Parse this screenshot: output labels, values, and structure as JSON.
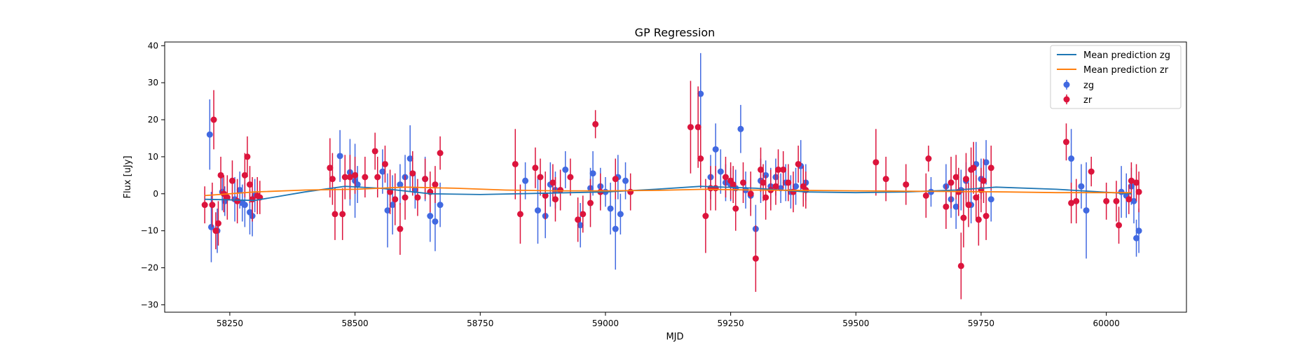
{
  "chart_data": {
    "type": "scatter",
    "title": "GP Regression",
    "xlabel": "MJD",
    "ylabel": "Flux [uJy]",
    "xlim": [
      58120,
      60160
    ],
    "ylim": [
      -32,
      41
    ],
    "xticks": [
      58250,
      58500,
      58750,
      59000,
      59250,
      59500,
      59750,
      60000
    ],
    "yticks": [
      -30,
      -20,
      -10,
      0,
      10,
      20,
      30,
      40
    ],
    "legend_position": "top-right",
    "lines": [
      {
        "name": "Mean prediction zg",
        "color": "#1f77b4",
        "x": [
          58200,
          58300,
          58400,
          58480,
          58550,
          58650,
          58750,
          58900,
          59000,
          59100,
          59190,
          59300,
          59400,
          59500,
          59600,
          59700,
          59780,
          59900,
          60050
        ],
        "y": [
          -1.5,
          -1.8,
          0.5,
          2.0,
          1.5,
          0.0,
          -0.2,
          0.2,
          0.5,
          1.2,
          2.0,
          1.5,
          0.5,
          0.3,
          0.5,
          1.0,
          1.8,
          1.2,
          0.0
        ]
      },
      {
        "name": "Mean prediction zr",
        "color": "#ff7f0e",
        "x": [
          58200,
          58300,
          58400,
          58500,
          58600,
          58700,
          58800,
          58900,
          59000,
          59100,
          59200,
          59300,
          59400,
          59500,
          59600,
          59700,
          59800,
          59900,
          60050
        ],
        "y": [
          -0.5,
          0.5,
          1.0,
          1.2,
          1.8,
          1.5,
          1.0,
          0.8,
          0.8,
          0.9,
          1.2,
          1.0,
          0.9,
          0.8,
          0.7,
          0.6,
          0.5,
          0.3,
          0.3
        ]
      }
    ],
    "series": [
      {
        "name": "zg",
        "color": "#4169e1",
        "x": [
          58210,
          58213,
          58225,
          58235,
          58240,
          58260,
          58270,
          58275,
          58280,
          58290,
          58295,
          58300,
          58470,
          58490,
          58500,
          58505,
          58555,
          58565,
          58575,
          58590,
          58600,
          58610,
          58620,
          58640,
          58650,
          58660,
          58670,
          58840,
          58865,
          58880,
          58890,
          58900,
          58920,
          58950,
          58970,
          58975,
          58990,
          59000,
          59010,
          59020,
          59025,
          59030,
          59040,
          59190,
          59210,
          59220,
          59230,
          59240,
          59250,
          59260,
          59270,
          59280,
          59290,
          59300,
          59310,
          59320,
          59330,
          59340,
          59350,
          59360,
          59370,
          59380,
          59390,
          59400,
          59650,
          59680,
          59690,
          59700,
          59710,
          59720,
          59730,
          59740,
          59750,
          59760,
          59770,
          59930,
          59950,
          59960,
          60030,
          60040,
          60050,
          60055,
          60060,
          60065
        ],
        "y": [
          16.0,
          -9.0,
          -10.0,
          0.5,
          -2.0,
          -1.5,
          1.0,
          -2.5,
          -3.0,
          -5.0,
          -6.0,
          -0.5,
          10.2,
          5.8,
          3.5,
          2.5,
          6.0,
          -4.5,
          -3.0,
          2.5,
          4.5,
          9.5,
          1.0,
          4.0,
          -6.0,
          -7.5,
          -3.0,
          3.5,
          -4.5,
          -6.0,
          2.5,
          1.0,
          6.5,
          -8.5,
          1.5,
          5.5,
          2.0,
          0.5,
          -4.0,
          -9.5,
          4.5,
          -5.5,
          3.5,
          27.0,
          4.5,
          12.0,
          6.0,
          3.0,
          2.5,
          1.5,
          17.5,
          1.0,
          -0.5,
          -9.5,
          3.5,
          5.0,
          2.0,
          4.5,
          1.5,
          3.0,
          0.5,
          2.0,
          7.5,
          3.0,
          0.5,
          2.0,
          -1.5,
          -3.5,
          1.0,
          3.5,
          -3.0,
          8.0,
          4.0,
          8.5,
          -1.5,
          9.5,
          2.0,
          -4.5,
          0.5,
          -0.5,
          2.0,
          -2.0,
          -12.0,
          -10.0
        ],
        "err": [
          9.5,
          9.5,
          6.0,
          5.0,
          4.0,
          6.0,
          5.0,
          5.0,
          6.0,
          6.0,
          5.5,
          4.5,
          7.0,
          9.0,
          10.0,
          5.0,
          6.0,
          10.0,
          8.0,
          5.5,
          6.0,
          9.0,
          5.0,
          6.0,
          7.0,
          8.0,
          6.0,
          5.0,
          9.0,
          6.0,
          6.0,
          5.0,
          5.0,
          6.0,
          5.5,
          6.0,
          5.0,
          4.0,
          7.0,
          11.0,
          6.0,
          5.5,
          5.0,
          11.0,
          6.0,
          7.0,
          6.0,
          5.0,
          4.5,
          5.0,
          6.5,
          5.0,
          4.5,
          6.5,
          6.0,
          4.0,
          5.0,
          5.0,
          4.0,
          5.0,
          4.5,
          5.0,
          7.0,
          5.0,
          4.0,
          6.0,
          5.0,
          6.0,
          5.5,
          5.0,
          5.0,
          6.0,
          5.5,
          6.0,
          6.0,
          8.0,
          6.0,
          13.0,
          7.0,
          6.0,
          5.0,
          6.0,
          5.0,
          6.0
        ]
      },
      {
        "name": "zr",
        "color": "#dc143c",
        "x": [
          58200,
          58215,
          58218,
          58222,
          58227,
          58232,
          58238,
          58245,
          58255,
          58265,
          58280,
          58285,
          58290,
          58295,
          58305,
          58310,
          58450,
          58455,
          58460,
          58475,
          58480,
          58490,
          58500,
          58520,
          58540,
          58545,
          58560,
          58570,
          58580,
          58590,
          58600,
          58615,
          58625,
          58640,
          58650,
          58660,
          58670,
          58820,
          58830,
          58860,
          58870,
          58880,
          58895,
          58900,
          58910,
          58930,
          58945,
          58955,
          58970,
          58980,
          58990,
          59020,
          59050,
          59170,
          59185,
          59190,
          59200,
          59210,
          59220,
          59240,
          59250,
          59255,
          59260,
          59275,
          59290,
          59300,
          59310,
          59315,
          59320,
          59330,
          59340,
          59345,
          59355,
          59365,
          59375,
          59385,
          59395,
          59400,
          59540,
          59560,
          59600,
          59640,
          59645,
          59680,
          59690,
          59700,
          59705,
          59710,
          59715,
          59720,
          59725,
          59730,
          59735,
          59740,
          59745,
          59750,
          59755,
          59760,
          59770,
          59920,
          59930,
          59940,
          59970,
          60000,
          60020,
          60025,
          60045,
          60050,
          60060,
          60065
        ],
        "y": [
          -3.0,
          -3.0,
          20.0,
          -10.0,
          -8.0,
          5.0,
          0.0,
          -1.0,
          3.5,
          -2.0,
          5.0,
          10.0,
          2.5,
          -1.5,
          -0.5,
          -1.0,
          7.0,
          4.0,
          -5.5,
          -5.5,
          4.5,
          4.5,
          5.0,
          4.5,
          11.5,
          4.5,
          8.0,
          0.5,
          -1.5,
          -9.5,
          -1.0,
          5.5,
          -1.0,
          4.0,
          0.5,
          2.5,
          11.0,
          8.0,
          -5.5,
          7.0,
          4.5,
          -0.5,
          3.0,
          -1.5,
          1.0,
          4.5,
          -7.0,
          -5.5,
          -2.5,
          18.8,
          0.5,
          4.0,
          0.5,
          18.0,
          18.0,
          9.5,
          -6.0,
          1.5,
          1.5,
          4.5,
          3.5,
          2.5,
          -4.0,
          3.0,
          0.0,
          -17.5,
          6.5,
          3.0,
          -1.0,
          1.0,
          2.0,
          6.5,
          6.5,
          3.0,
          0.5,
          8.0,
          2.0,
          1.0,
          8.5,
          4.0,
          2.5,
          -0.5,
          9.5,
          -3.5,
          3.0,
          4.5,
          0.5,
          -19.5,
          -6.5,
          4.0,
          -3.0,
          6.5,
          7.0,
          -1.0,
          -7.0,
          1.0,
          3.5,
          -6.0,
          7.0,
          14.0,
          -2.5,
          -2.0,
          6.0,
          -2.0,
          -2.0,
          -8.5,
          -1.5,
          3.5,
          3.0,
          0.5
        ],
        "err": [
          5.0,
          6.0,
          8.0,
          5.0,
          6.0,
          5.0,
          5.0,
          6.0,
          5.5,
          6.0,
          6.0,
          5.5,
          5.0,
          6.0,
          5.0,
          4.5,
          8.0,
          7.0,
          7.0,
          7.0,
          6.0,
          6.0,
          5.0,
          5.5,
          5.0,
          5.5,
          5.0,
          6.0,
          7.0,
          7.0,
          6.0,
          6.0,
          5.0,
          5.5,
          5.5,
          5.0,
          4.5,
          9.5,
          8.0,
          5.5,
          5.0,
          6.5,
          5.0,
          6.0,
          5.5,
          5.0,
          6.0,
          5.0,
          6.5,
          3.8,
          5.0,
          5.5,
          5.0,
          12.5,
          11.0,
          8.0,
          10.0,
          6.0,
          6.0,
          5.5,
          5.0,
          5.0,
          6.0,
          5.5,
          6.0,
          9.0,
          6.0,
          5.0,
          6.0,
          5.5,
          5.0,
          5.5,
          5.0,
          5.0,
          5.5,
          5.0,
          5.5,
          5.0,
          9.0,
          6.0,
          5.5,
          6.0,
          3.5,
          6.0,
          7.0,
          6.0,
          6.5,
          9.0,
          8.0,
          7.0,
          6.0,
          6.0,
          7.0,
          6.0,
          7.0,
          6.0,
          6.0,
          6.5,
          6.0,
          5.0,
          5.5,
          6.0,
          4.0,
          5.0,
          5.5,
          5.0,
          4.0,
          5.0,
          5.0,
          5.5
        ]
      }
    ]
  }
}
